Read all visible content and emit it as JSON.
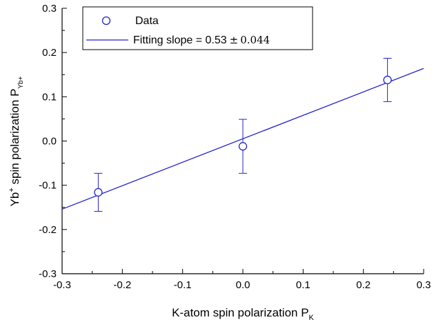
{
  "chart_data": {
    "type": "scatter",
    "xlabel": {
      "main": "K-atom spin polarization P",
      "sub": "K"
    },
    "ylabel": {
      "main": "Yb",
      "sup": "+",
      "rest": " spin polarization P",
      "sub": "Yb+"
    },
    "xlim": [
      -0.3,
      0.3
    ],
    "ylim": [
      -0.3,
      0.3
    ],
    "xticks": [
      -0.3,
      -0.2,
      -0.1,
      0.0,
      0.1,
      0.2,
      0.3
    ],
    "yticks": [
      -0.3,
      -0.2,
      -0.1,
      0.0,
      0.1,
      0.2,
      0.3
    ],
    "xtick_labels": [
      "-0.3",
      "-0.2",
      "-0.1",
      "0.0",
      "0.1",
      "0.2",
      "0.3"
    ],
    "ytick_labels": [
      "-0.3",
      "-0.2",
      "-0.1",
      "0.0",
      "0.1",
      "0.2",
      "0.3"
    ],
    "grid": false,
    "legend_position": "top-left",
    "color": "#2222cc",
    "series": [
      {
        "name": "Data",
        "kind": "points-with-errorbars",
        "x": [
          -0.24,
          0.0,
          0.24
        ],
        "y": [
          -0.116,
          -0.012,
          0.138
        ],
        "yerr": [
          0.043,
          0.061,
          0.049
        ]
      },
      {
        "name": "Fitting slope = 0.53",
        "pm": "±",
        "err_text": "0.044",
        "kind": "line",
        "slope": 0.53,
        "intercept": 0.005,
        "x": [
          -0.3,
          0.3
        ]
      }
    ]
  }
}
